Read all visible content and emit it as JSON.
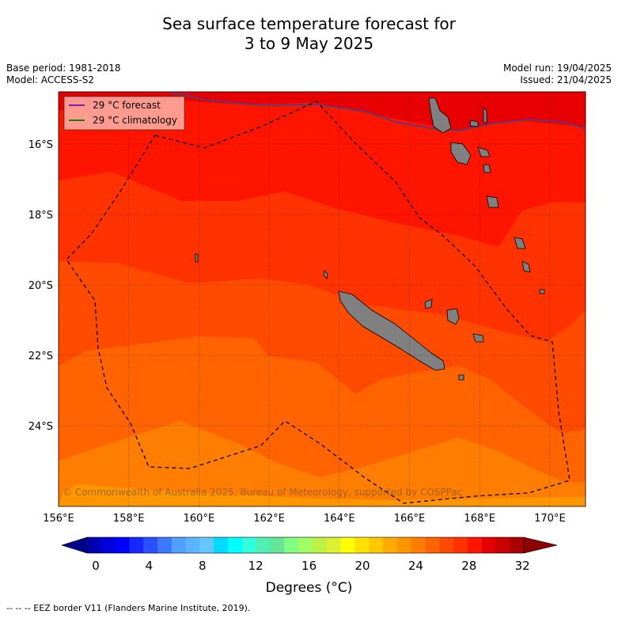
{
  "title_line1": "Sea surface temperature forecast for",
  "title_line2": "3 to 9 May 2025",
  "meta_left": {
    "base_period": "Base period: 1981-2018",
    "model": "Model: ACCESS-S2"
  },
  "meta_right": {
    "model_run": "Model run: 19/04/2025",
    "issued": "Issued: 21/04/2025"
  },
  "legend": {
    "forecast": "29 °C  forecast",
    "climatology": "29 °C  climatology",
    "forecast_color": "#7a1fa2",
    "climatology_color": "#1a7a1a"
  },
  "axes": {
    "lon_ticks": [
      "156°E",
      "158°E",
      "160°E",
      "162°E",
      "164°E",
      "166°E",
      "168°E",
      "170°E"
    ],
    "lat_ticks": [
      "16°S",
      "18°S",
      "20°S",
      "22°S",
      "24°S"
    ]
  },
  "colorbar": {
    "label": "Degrees (°C)",
    "ticks": [
      "0",
      "4",
      "8",
      "12",
      "16",
      "20",
      "24",
      "28",
      "32"
    ],
    "colors": [
      "#00008c",
      "#0000b4",
      "#0000dc",
      "#0000ff",
      "#1428ff",
      "#2850ff",
      "#3c78ff",
      "#50a0ff",
      "#5ab4ff",
      "#64c8ff",
      "#00dcff",
      "#00ffff",
      "#32ffdc",
      "#50f0b4",
      "#64e696",
      "#82ff82",
      "#a0ff64",
      "#bef046",
      "#dcf032",
      "#ffff00",
      "#ffe100",
      "#ffc800",
      "#ffaa00",
      "#ff9600",
      "#ff7d00",
      "#ff6400",
      "#ff4b00",
      "#ff3200",
      "#ff1400",
      "#e60000",
      "#c80000",
      "#aa0000",
      "#8c0000"
    ]
  },
  "sst_zone_colors": {
    "band_30": "#e80000",
    "band_29": "#ff1400",
    "band_28": "#ff3200",
    "band_27": "#ff4b00",
    "band_26": "#ff6400",
    "band_25": "#ff7d00",
    "band_24": "#ff9600",
    "land": "#808080"
  },
  "copyright": "© Commonwealth of Australia 2025, Bureau of Meteorology, supported by COSPPac",
  "footer": "--  --  -- EEZ border V11 (Flanders Marine Institute, 2019)."
}
